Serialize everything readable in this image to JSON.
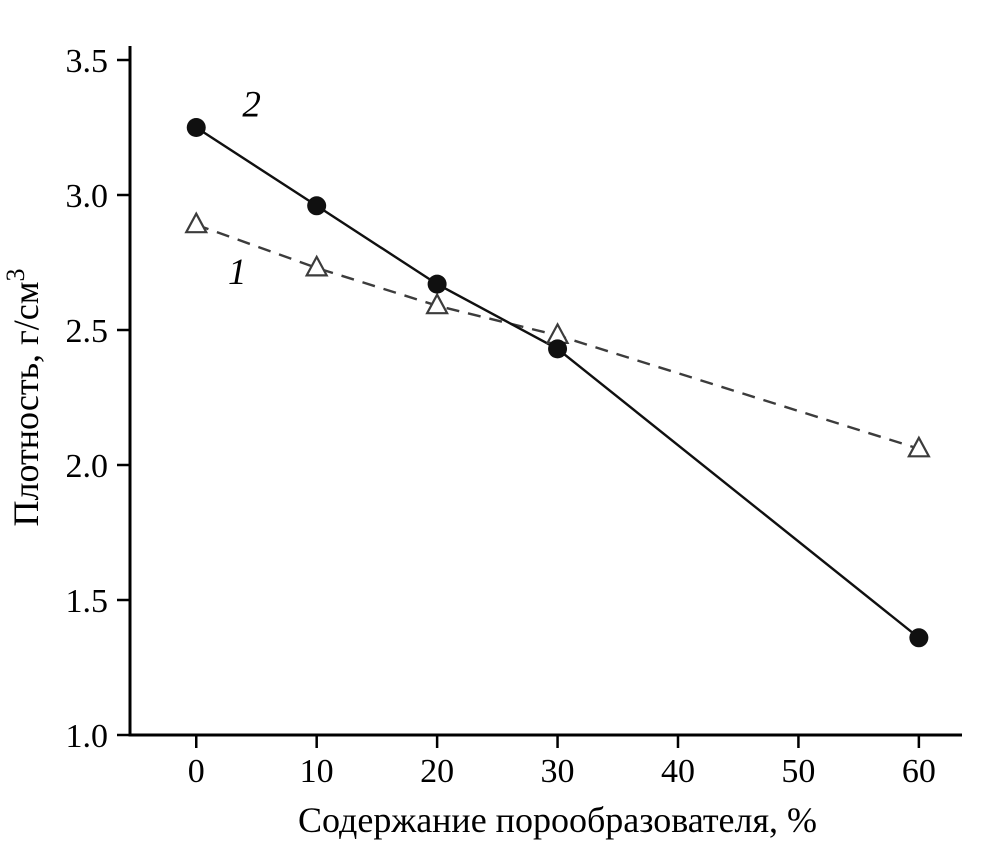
{
  "chart_data": {
    "type": "line",
    "title": "",
    "xlabel": "Содержание порообразователя, %",
    "ylabel": "Плотность, г/см³",
    "xlim": [
      -5.5,
      63
    ],
    "ylim": [
      1.0,
      3.5
    ],
    "x_ticks": [
      0,
      10,
      20,
      30,
      40,
      50,
      60
    ],
    "x_tick_labels": [
      "0",
      "10",
      "20",
      "30",
      "40",
      "50",
      "60"
    ],
    "y_ticks": [
      1.0,
      1.5,
      2.0,
      2.5,
      3.0,
      3.5
    ],
    "y_tick_labels": [
      "1.0",
      "1.5",
      "2.0",
      "2.5",
      "3.0",
      "3.5"
    ],
    "grid": false,
    "legend": "numeric curve labels placed on plot",
    "axis_color": "#000000",
    "background_color": "#ffffff",
    "x": [
      0,
      10,
      20,
      30,
      60
    ],
    "series": [
      {
        "name": "1",
        "marker": "triangle-open",
        "line": "dashed",
        "color": "#3c3c3c",
        "values": [
          2.89,
          2.73,
          2.59,
          2.48,
          2.06
        ],
        "label_pos": {
          "x": 3.4,
          "y": 2.67
        }
      },
      {
        "name": "2",
        "marker": "circle-filled",
        "line": "solid",
        "color": "#101010",
        "values": [
          3.25,
          2.96,
          2.67,
          2.43,
          1.36
        ],
        "label_pos": {
          "x": 4.6,
          "y": 3.29
        }
      }
    ]
  }
}
